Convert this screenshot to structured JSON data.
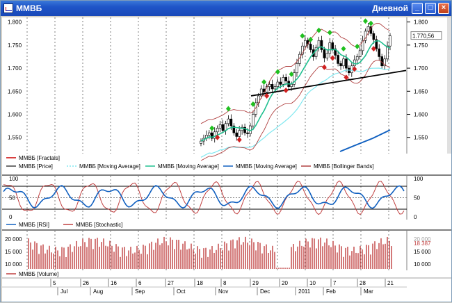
{
  "window": {
    "title": "ММВБ",
    "period": "Дневной",
    "buttons": {
      "minimize": "_",
      "maximize": "□",
      "close": "×"
    }
  },
  "price_panel": {
    "y_ticks": [
      "1.800",
      "1.750",
      "1.700",
      "1.650",
      "1.600",
      "1.550"
    ],
    "current_price": "1.770,56",
    "legend": [
      {
        "label": "ММВБ [Fractals]",
        "color": "#cc0000"
      },
      {
        "label": "ММВБ [Price]",
        "color": "#404040"
      },
      {
        "label": "ММВБ [Moving Average]",
        "color": "#80e8f0"
      },
      {
        "label": "ММВБ [Moving Average]",
        "color": "#20c090"
      },
      {
        "label": "ММВБ [Moving Average]",
        "color": "#1060c0"
      },
      {
        "label": "ММВБ [Bollinger Bands]",
        "color": "#b04040"
      }
    ]
  },
  "oscillator_panel": {
    "y_ticks": [
      "100",
      "50",
      "0"
    ],
    "legend": [
      {
        "label": "ММВБ [RSI]",
        "color": "#1060c0"
      },
      {
        "label": "ММВБ [Stochastic]",
        "color": "#c04040"
      }
    ]
  },
  "volume_panel": {
    "y_ticks_left": [
      "20 000",
      "15 000",
      "10 000"
    ],
    "y_ticks_right": [
      "20 000",
      "15 000",
      "10 000"
    ],
    "current_volume": "18 387",
    "legend": [
      {
        "label": "ММВБ [Volume]",
        "color": "#c04040"
      }
    ]
  },
  "time_axis": {
    "day_labels": [
      "5",
      "26",
      "16",
      "6",
      "27",
      "18",
      "8",
      "29",
      "20",
      "10",
      "7",
      "28",
      "21"
    ],
    "month_labels": [
      "Jul",
      "Aug",
      "Sep",
      "Oct",
      "Nov",
      "Dec",
      "2011",
      "Feb",
      "Mar"
    ]
  },
  "chart_data": {
    "type": "candlestick",
    "price_range": [
      1515,
      1810
    ],
    "close_estimate": [
      1542,
      1548,
      1555,
      1560,
      1548,
      1562,
      1570,
      1578,
      1565,
      1580,
      1590,
      1575,
      1560,
      1552,
      1565,
      1572,
      1560,
      1558,
      1575,
      1600,
      1625,
      1640,
      1655,
      1648,
      1660,
      1665,
      1655,
      1660,
      1670,
      1665,
      1680,
      1672,
      1660,
      1665,
      1690,
      1710,
      1730,
      1748,
      1760,
      1752,
      1740,
      1725,
      1745,
      1760,
      1740,
      1722,
      1732,
      1755,
      1742,
      1728,
      1710,
      1705,
      1720,
      1700,
      1690,
      1705,
      1718,
      1725,
      1738,
      1760,
      1780,
      1790,
      1775,
      1762,
      1742,
      1725,
      1705,
      1720,
      1748,
      1770
    ],
    "volume_range": [
      8000,
      22000
    ]
  }
}
